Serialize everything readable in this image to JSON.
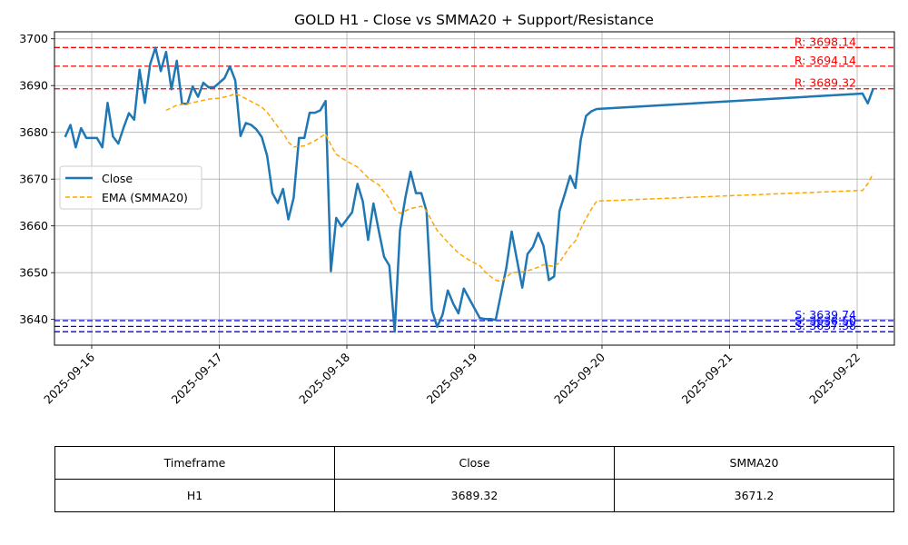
{
  "chart_data": {
    "type": "line",
    "title": "GOLD H1 - Close vs SMMA20 + Support/Resistance",
    "xlabel": "",
    "ylabel": "",
    "x_range": [
      "2025-09-15T17:00",
      "2025-09-22T07:00"
    ],
    "ylim": [
      3634.5,
      3701.5
    ],
    "grid": true,
    "legend_position": "center-left",
    "x_ticks": [
      "2025-09-16",
      "2025-09-17",
      "2025-09-18",
      "2025-09-19",
      "2025-09-20",
      "2025-09-21",
      "2025-09-22"
    ],
    "y_ticks": [
      3640,
      3650,
      3660,
      3670,
      3680,
      3690,
      3700
    ],
    "series": [
      {
        "name": "Close",
        "color": "#1f77b4",
        "style": "solid",
        "points": [
          [
            "2025-09-15T19:00",
            3679.0
          ],
          [
            "2025-09-15T20:00",
            3681.6
          ],
          [
            "2025-09-15T21:00",
            3676.8
          ],
          [
            "2025-09-15T22:00",
            3680.9
          ],
          [
            "2025-09-15T23:00",
            3678.8
          ],
          [
            "2025-09-16T00:00",
            3678.8
          ],
          [
            "2025-09-16T01:00",
            3678.8
          ],
          [
            "2025-09-16T02:00",
            3676.8
          ],
          [
            "2025-09-16T03:00",
            3686.3
          ],
          [
            "2025-09-16T04:00",
            3679.1
          ],
          [
            "2025-09-16T05:00",
            3677.6
          ],
          [
            "2025-09-16T06:00",
            3681.0
          ],
          [
            "2025-09-16T07:00",
            3684.1
          ],
          [
            "2025-09-16T08:00",
            3682.7
          ],
          [
            "2025-09-16T09:00",
            3693.4
          ],
          [
            "2025-09-16T10:00",
            3686.3
          ],
          [
            "2025-09-16T11:00",
            3694.6
          ],
          [
            "2025-09-16T12:00",
            3698.1
          ],
          [
            "2025-09-16T13:00",
            3693.1
          ],
          [
            "2025-09-16T14:00",
            3697.2
          ],
          [
            "2025-09-16T15:00",
            3689.2
          ],
          [
            "2025-09-16T16:00",
            3695.3
          ],
          [
            "2025-09-16T17:00",
            3686.1
          ],
          [
            "2025-09-16T18:00",
            3686.1
          ],
          [
            "2025-09-16T19:00",
            3689.8
          ],
          [
            "2025-09-16T20:00",
            3687.6
          ],
          [
            "2025-09-16T21:00",
            3690.6
          ],
          [
            "2025-09-16T22:00",
            3689.6
          ],
          [
            "2025-09-16T23:00",
            3689.6
          ],
          [
            "2025-09-17T00:00",
            3690.6
          ],
          [
            "2025-09-17T01:00",
            3691.6
          ],
          [
            "2025-09-17T02:00",
            3694.1
          ],
          [
            "2025-09-17T03:00",
            3691.1
          ],
          [
            "2025-09-17T04:00",
            3679.2
          ],
          [
            "2025-09-17T05:00",
            3682.0
          ],
          [
            "2025-09-17T06:00",
            3681.6
          ],
          [
            "2025-09-17T07:00",
            3680.6
          ],
          [
            "2025-09-17T08:00",
            3679.0
          ],
          [
            "2025-09-17T09:00",
            3675.0
          ],
          [
            "2025-09-17T10:00",
            3667.0
          ],
          [
            "2025-09-17T11:00",
            3664.9
          ],
          [
            "2025-09-17T12:00",
            3667.9
          ],
          [
            "2025-09-17T13:00",
            3661.4
          ],
          [
            "2025-09-17T14:00",
            3666.0
          ],
          [
            "2025-09-17T15:00",
            3678.8
          ],
          [
            "2025-09-17T16:00",
            3678.8
          ],
          [
            "2025-09-17T17:00",
            3684.2
          ],
          [
            "2025-09-17T18:00",
            3684.2
          ],
          [
            "2025-09-17T19:00",
            3684.7
          ],
          [
            "2025-09-17T20:00",
            3686.7
          ],
          [
            "2025-09-17T21:00",
            3650.3
          ],
          [
            "2025-09-17T22:00",
            3661.7
          ],
          [
            "2025-09-17T23:00",
            3659.9
          ],
          [
            "2025-09-18T01:00",
            3662.9
          ],
          [
            "2025-09-18T02:00",
            3669.0
          ],
          [
            "2025-09-18T03:00",
            3665.2
          ],
          [
            "2025-09-18T04:00",
            3657.0
          ],
          [
            "2025-09-18T05:00",
            3664.8
          ],
          [
            "2025-09-18T06:00",
            3659.0
          ],
          [
            "2025-09-18T07:00",
            3653.4
          ],
          [
            "2025-09-18T08:00",
            3651.5
          ],
          [
            "2025-09-18T09:00",
            3637.4
          ],
          [
            "2025-09-18T10:00",
            3659.0
          ],
          [
            "2025-09-18T11:00",
            3666.0
          ],
          [
            "2025-09-18T12:00",
            3671.6
          ],
          [
            "2025-09-18T13:00",
            3667.0
          ],
          [
            "2025-09-18T14:00",
            3667.0
          ],
          [
            "2025-09-18T15:00",
            3663.1
          ],
          [
            "2025-09-18T16:00",
            3642.0
          ],
          [
            "2025-09-18T17:00",
            3638.4
          ],
          [
            "2025-09-18T18:00",
            3641.0
          ],
          [
            "2025-09-18T19:00",
            3646.2
          ],
          [
            "2025-09-18T20:00",
            3643.4
          ],
          [
            "2025-09-18T21:00",
            3641.3
          ],
          [
            "2025-09-18T22:00",
            3646.6
          ],
          [
            "2025-09-18T23:00",
            3644.5
          ],
          [
            "2025-09-19T01:00",
            3640.3
          ],
          [
            "2025-09-19T02:00",
            3640.1
          ],
          [
            "2025-09-19T03:00",
            3640.1
          ],
          [
            "2025-09-19T04:00",
            3639.9
          ],
          [
            "2025-09-19T05:00",
            3645.5
          ],
          [
            "2025-09-19T06:00",
            3651.0
          ],
          [
            "2025-09-19T07:00",
            3658.8
          ],
          [
            "2025-09-19T08:00",
            3652.8
          ],
          [
            "2025-09-19T09:00",
            3646.8
          ],
          [
            "2025-09-19T10:00",
            3654.0
          ],
          [
            "2025-09-19T11:00",
            3655.5
          ],
          [
            "2025-09-19T12:00",
            3658.5
          ],
          [
            "2025-09-19T13:00",
            3655.7
          ],
          [
            "2025-09-19T14:00",
            3648.4
          ],
          [
            "2025-09-19T15:00",
            3649.2
          ],
          [
            "2025-09-19T16:00",
            3663.2
          ],
          [
            "2025-09-19T17:00",
            3666.8
          ],
          [
            "2025-09-19T18:00",
            3670.7
          ],
          [
            "2025-09-19T19:00",
            3668.1
          ],
          [
            "2025-09-19T20:00",
            3678.4
          ],
          [
            "2025-09-19T21:00",
            3683.5
          ],
          [
            "2025-09-19T22:00",
            3684.5
          ],
          [
            "2025-09-19T23:00",
            3685.0
          ],
          [
            "2025-09-22T01:00",
            3688.3
          ],
          [
            "2025-09-22T02:00",
            3686.2
          ],
          [
            "2025-09-22T03:00",
            3689.3
          ]
        ]
      },
      {
        "name": "EMA (SMMA20)",
        "color": "#ffa500",
        "style": "dashed",
        "points": [
          [
            "2025-09-16T14:00",
            3684.7
          ],
          [
            "2025-09-16T16:00",
            3685.8
          ],
          [
            "2025-09-16T18:00",
            3686.1
          ],
          [
            "2025-09-16T20:00",
            3686.6
          ],
          [
            "2025-09-16T22:00",
            3687.1
          ],
          [
            "2025-09-17T00:00",
            3687.3
          ],
          [
            "2025-09-17T02:00",
            3687.8
          ],
          [
            "2025-09-17T03:00",
            3688.3
          ],
          [
            "2025-09-17T04:00",
            3687.8
          ],
          [
            "2025-09-17T06:00",
            3686.6
          ],
          [
            "2025-09-17T08:00",
            3685.4
          ],
          [
            "2025-09-17T09:00",
            3684.3
          ],
          [
            "2025-09-17T10:00",
            3682.8
          ],
          [
            "2025-09-17T11:00",
            3681.2
          ],
          [
            "2025-09-17T12:00",
            3679.9
          ],
          [
            "2025-09-17T13:00",
            3677.9
          ],
          [
            "2025-09-17T14:00",
            3676.9
          ],
          [
            "2025-09-17T16:00",
            3677.1
          ],
          [
            "2025-09-17T18:00",
            3678.2
          ],
          [
            "2025-09-17T20:00",
            3679.7
          ],
          [
            "2025-09-17T21:00",
            3677.3
          ],
          [
            "2025-09-17T22:00",
            3675.3
          ],
          [
            "2025-09-18T00:00",
            3673.8
          ],
          [
            "2025-09-18T02:00",
            3672.6
          ],
          [
            "2025-09-18T04:00",
            3670.3
          ],
          [
            "2025-09-18T05:00",
            3669.5
          ],
          [
            "2025-09-18T06:00",
            3668.8
          ],
          [
            "2025-09-18T07:00",
            3667.3
          ],
          [
            "2025-09-18T08:00",
            3665.9
          ],
          [
            "2025-09-18T09:00",
            3663.5
          ],
          [
            "2025-09-18T10:00",
            3662.7
          ],
          [
            "2025-09-18T11:00",
            3663.2
          ],
          [
            "2025-09-18T12:00",
            3663.7
          ],
          [
            "2025-09-18T14:00",
            3664.2
          ],
          [
            "2025-09-18T15:00",
            3663.2
          ],
          [
            "2025-09-18T16:00",
            3661.0
          ],
          [
            "2025-09-18T17:00",
            3659.0
          ],
          [
            "2025-09-18T19:00",
            3656.5
          ],
          [
            "2025-09-18T21:00",
            3654.2
          ],
          [
            "2025-09-18T23:00",
            3652.7
          ],
          [
            "2025-09-19T01:00",
            3651.5
          ],
          [
            "2025-09-19T02:00",
            3650.2
          ],
          [
            "2025-09-19T03:00",
            3649.2
          ],
          [
            "2025-09-19T04:00",
            3648.4
          ],
          [
            "2025-09-19T05:00",
            3648.1
          ],
          [
            "2025-09-19T06:00",
            3649.0
          ],
          [
            "2025-09-19T07:00",
            3650.0
          ],
          [
            "2025-09-19T09:00",
            3650.2
          ],
          [
            "2025-09-19T11:00",
            3650.7
          ],
          [
            "2025-09-19T13:00",
            3651.7
          ],
          [
            "2025-09-19T15:00",
            3651.3
          ],
          [
            "2025-09-19T16:00",
            3652.2
          ],
          [
            "2025-09-19T17:00",
            3653.9
          ],
          [
            "2025-09-19T18:00",
            3655.6
          ],
          [
            "2025-09-19T19:00",
            3656.8
          ],
          [
            "2025-09-19T20:00",
            3659.4
          ],
          [
            "2025-09-19T21:00",
            3661.6
          ],
          [
            "2025-09-19T22:00",
            3663.6
          ],
          [
            "2025-09-19T23:00",
            3665.3
          ],
          [
            "2025-09-22T01:00",
            3667.6
          ],
          [
            "2025-09-22T02:00",
            3669.0
          ],
          [
            "2025-09-22T03:00",
            3671.2
          ]
        ]
      }
    ],
    "levels": [
      {
        "kind": "resistance",
        "value": 3698.14,
        "label": "R: 3698.14",
        "color": "#ff0000"
      },
      {
        "kind": "resistance",
        "value": 3694.14,
        "label": "R: 3694.14",
        "color": "#ff0000"
      },
      {
        "kind": "resistance",
        "value": 3689.32,
        "label": "R: 3689.32",
        "color": "#ff0000"
      },
      {
        "kind": "support",
        "value": 3639.74,
        "label": "S: 3639.74",
        "color": "#0000ff"
      },
      {
        "kind": "support",
        "value": 3638.5,
        "label": "S: 3638.50",
        "color": "#0000ff"
      },
      {
        "kind": "support",
        "value": 3637.38,
        "label": "S: 3637.38",
        "color": "#0000ff"
      }
    ]
  },
  "table": {
    "headers": [
      "Timeframe",
      "Close",
      "SMMA20"
    ],
    "rows": [
      [
        "H1",
        "3689.32",
        "3671.2"
      ]
    ]
  }
}
